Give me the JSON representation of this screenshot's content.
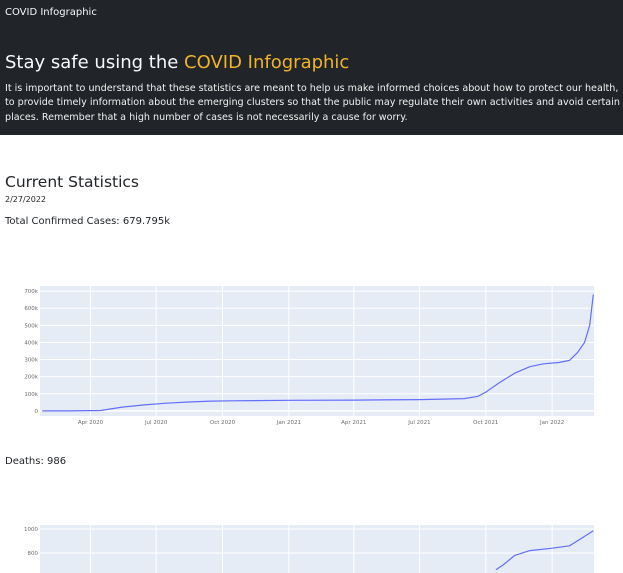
{
  "header": {
    "brand": "COVID Infographic",
    "title_prefix": "Stay safe using the ",
    "title_accent": "COVID Infographic",
    "description": "It is important to understand that these statistics are meant to help us make informed choices about how to protect our health, to provide timely information about the emerging clusters so that the public may regulate their own activities and avoid certain places. Remember that a high number of cases is not necessarily a cause for worry.",
    "accent_color": "#f0b429",
    "background_color": "#212529"
  },
  "stats": {
    "section_title": "Current Statistics",
    "date": "2/27/2022",
    "cases_label": "Total Confirmed Cases: 679.795k",
    "deaths_label": "Deaths: 986"
  },
  "chart_data": [
    {
      "type": "line",
      "title": "",
      "xlabel": "",
      "ylabel": "",
      "line_color": "#636efa",
      "plot_bg": "#e5ecf6",
      "grid": true,
      "x_tick_labels": [
        "Apr 2020",
        "Jul 2020",
        "Oct 2020",
        "Jan 2021",
        "Apr 2021",
        "Jul 2021",
        "Oct 2021",
        "Jan 2022"
      ],
      "y_tick_labels": [
        "0",
        "100k",
        "200k",
        "300k",
        "400k",
        "500k",
        "600k",
        "700k"
      ],
      "ylim": [
        -30000,
        730000
      ],
      "x": [
        "2020-01-25",
        "2020-03-01",
        "2020-04-15",
        "2020-05-15",
        "2020-06-15",
        "2020-07-15",
        "2020-08-15",
        "2020-09-15",
        "2020-10-15",
        "2021-01-01",
        "2021-04-01",
        "2021-07-01",
        "2021-09-01",
        "2021-09-20",
        "2021-10-01",
        "2021-10-20",
        "2021-11-10",
        "2021-12-01",
        "2021-12-20",
        "2022-01-10",
        "2022-01-25",
        "2022-02-05",
        "2022-02-15",
        "2022-02-22",
        "2022-02-27"
      ],
      "values": [
        0,
        0,
        2000,
        22000,
        35000,
        45000,
        52000,
        57000,
        59000,
        62000,
        63000,
        66000,
        72000,
        85000,
        110000,
        165000,
        220000,
        258000,
        275000,
        283000,
        295000,
        340000,
        400000,
        500000,
        679795
      ]
    },
    {
      "type": "line",
      "title": "",
      "xlabel": "",
      "ylabel": "",
      "line_color": "#636efa",
      "plot_bg": "#e5ecf6",
      "grid": true,
      "y_tick_labels": [
        "800",
        "1000"
      ],
      "visible_partial": true,
      "x": [
        "2021-10-15",
        "2021-10-25",
        "2021-11-10",
        "2021-12-01",
        "2022-01-01",
        "2022-01-25",
        "2022-02-10",
        "2022-02-27"
      ],
      "values": [
        660,
        700,
        780,
        820,
        840,
        860,
        920,
        986
      ]
    }
  ]
}
